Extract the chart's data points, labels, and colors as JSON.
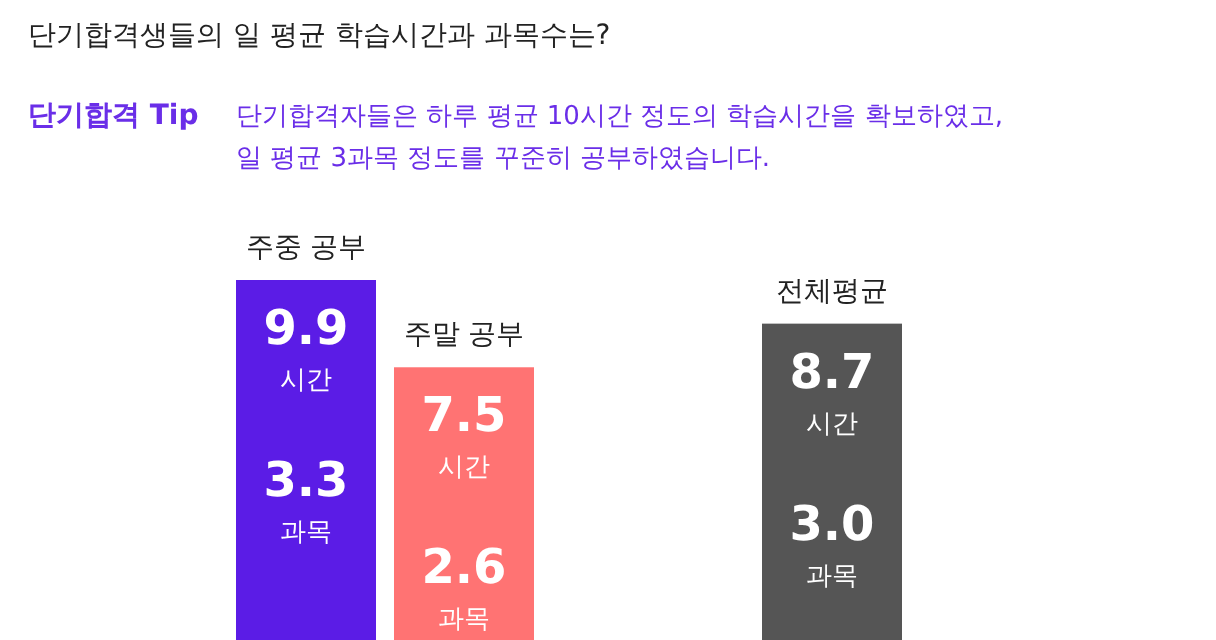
{
  "chart_data": {
    "type": "bar",
    "title": "단기합격생들의 일 평균 학습시간과 과목수는?",
    "categories": [
      "주중 공부",
      "주말 공부",
      "전체평균"
    ],
    "values": [
      9.9,
      7.5,
      8.7
    ],
    "colors": [
      "#5b1ce6",
      "#ff7373",
      "#555555"
    ],
    "value_labels": [
      "9.9\n시간",
      "7.5\n시간",
      "8.7\n시간"
    ],
    "annotations": [
      "단기합격 Tip",
      "단기합격자들은 하루 평균 10시간 정도의 학습시간을 확보하였고,\n일 평균 3과목 정도를 꾸준히 공부하였습니다.",
      "3.3\n과목",
      "2.6\n과목",
      "3.0\n과목"
    ]
  }
}
